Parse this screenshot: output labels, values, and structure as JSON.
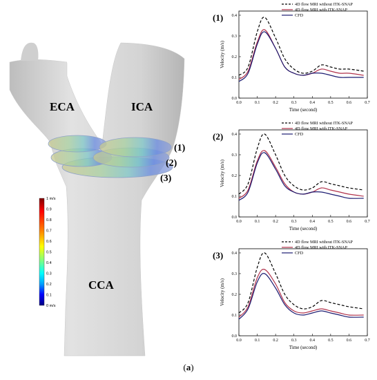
{
  "figure": {
    "caption_open": "(",
    "caption_letter": "a",
    "caption_close": ")"
  },
  "vessel": {
    "labels": {
      "eca": "ECA",
      "ica": "ICA",
      "cca": "CCA"
    },
    "plane_labels": [
      "(1)",
      "(2)",
      "(3)"
    ],
    "colorbar": {
      "ticks": [
        "1 m/s",
        "0.9",
        "0.8",
        "0.7",
        "0.6",
        "0.5",
        "0.4",
        "0.3",
        "0.2",
        "0.1",
        "0 m/s"
      ],
      "colors": [
        "#000080",
        "#0000ff",
        "#00a0ff",
        "#00ffff",
        "#80ff80",
        "#ffff00",
        "#ff8000",
        "#ff0000",
        "#800000"
      ]
    },
    "vessel_color": "#d9d9d9"
  },
  "chart_data": [
    {
      "type": "line",
      "panel_label": "(1)",
      "xlabel": "Time (second)",
      "ylabel": "Velocity (m/s)",
      "xlim": [
        0,
        0.7
      ],
      "ylim": [
        0,
        0.42
      ],
      "xticks": [
        "0.0",
        "0.1",
        "0.2",
        "0.3",
        "0.4",
        "0.5",
        "0.6",
        "0.7"
      ],
      "yticks": [
        "0.0",
        "0.1",
        "0.2",
        "0.3",
        "0.4"
      ],
      "x": [
        0,
        0.05,
        0.1,
        0.14,
        0.2,
        0.25,
        0.3,
        0.35,
        0.4,
        0.45,
        0.5,
        0.55,
        0.6,
        0.68
      ],
      "legend_position": "top-right",
      "series": [
        {
          "name": "4D flow MRI without ITK-SNAP",
          "color": "#000000",
          "dash": "dashed",
          "values": [
            0.11,
            0.15,
            0.32,
            0.39,
            0.29,
            0.19,
            0.14,
            0.12,
            0.13,
            0.16,
            0.15,
            0.14,
            0.14,
            0.13
          ]
        },
        {
          "name": "4D flow MRI with ITK-SNAP",
          "color": "#b0304a",
          "dash": "solid",
          "values": [
            0.09,
            0.13,
            0.27,
            0.33,
            0.24,
            0.15,
            0.12,
            0.11,
            0.12,
            0.14,
            0.13,
            0.12,
            0.12,
            0.11
          ]
        },
        {
          "name": "CFD",
          "color": "#1a1a70",
          "dash": "solid",
          "values": [
            0.08,
            0.12,
            0.26,
            0.32,
            0.24,
            0.15,
            0.12,
            0.11,
            0.12,
            0.12,
            0.11,
            0.1,
            0.1,
            0.1
          ]
        }
      ]
    },
    {
      "type": "line",
      "panel_label": "(2)",
      "xlabel": "Time (second)",
      "ylabel": "Velocity (m/s)",
      "xlim": [
        0,
        0.7
      ],
      "ylim": [
        0,
        0.42
      ],
      "xticks": [
        "0.0",
        "0.1",
        "0.2",
        "0.3",
        "0.4",
        "0.5",
        "0.6",
        "0.7"
      ],
      "yticks": [
        "0.0",
        "0.1",
        "0.2",
        "0.3",
        "0.4"
      ],
      "x": [
        0,
        0.05,
        0.1,
        0.14,
        0.2,
        0.25,
        0.3,
        0.35,
        0.4,
        0.45,
        0.5,
        0.55,
        0.6,
        0.68
      ],
      "legend_position": "top-right",
      "series": [
        {
          "name": "4D flow MRI without ITK-SNAP",
          "color": "#000000",
          "dash": "dashed",
          "values": [
            0.11,
            0.16,
            0.33,
            0.4,
            0.3,
            0.2,
            0.15,
            0.13,
            0.14,
            0.17,
            0.16,
            0.15,
            0.14,
            0.13
          ]
        },
        {
          "name": "4D flow MRI with ITK-SNAP",
          "color": "#b0304a",
          "dash": "solid",
          "values": [
            0.09,
            0.13,
            0.27,
            0.32,
            0.24,
            0.16,
            0.12,
            0.11,
            0.12,
            0.14,
            0.13,
            0.12,
            0.11,
            0.1
          ]
        },
        {
          "name": "CFD",
          "color": "#1a1a70",
          "dash": "solid",
          "values": [
            0.08,
            0.12,
            0.26,
            0.31,
            0.23,
            0.15,
            0.12,
            0.11,
            0.12,
            0.12,
            0.11,
            0.1,
            0.09,
            0.09
          ]
        }
      ]
    },
    {
      "type": "line",
      "panel_label": "(3)",
      "xlabel": "Time (second)",
      "ylabel": "Velocity (m/s)",
      "xlim": [
        0,
        0.7
      ],
      "ylim": [
        0,
        0.42
      ],
      "xticks": [
        "0.0",
        "0.1",
        "0.2",
        "0.3",
        "0.4",
        "0.5",
        "0.6",
        "0.7"
      ],
      "yticks": [
        "0.0",
        "0.1",
        "0.2",
        "0.3",
        "0.4"
      ],
      "x": [
        0,
        0.05,
        0.1,
        0.14,
        0.2,
        0.25,
        0.3,
        0.35,
        0.4,
        0.45,
        0.5,
        0.55,
        0.6,
        0.68
      ],
      "legend_position": "top-right",
      "series": [
        {
          "name": "4D flow MRI without ITK-SNAP",
          "color": "#000000",
          "dash": "dashed",
          "values": [
            0.11,
            0.16,
            0.33,
            0.4,
            0.3,
            0.2,
            0.15,
            0.13,
            0.14,
            0.17,
            0.16,
            0.15,
            0.14,
            0.13
          ]
        },
        {
          "name": "4D flow MRI with ITK-SNAP",
          "color": "#b0304a",
          "dash": "solid",
          "values": [
            0.09,
            0.14,
            0.28,
            0.32,
            0.25,
            0.16,
            0.12,
            0.11,
            0.12,
            0.13,
            0.12,
            0.11,
            0.1,
            0.1
          ]
        },
        {
          "name": "CFD",
          "color": "#1a1a70",
          "dash": "solid",
          "values": [
            0.08,
            0.13,
            0.26,
            0.3,
            0.23,
            0.15,
            0.11,
            0.1,
            0.11,
            0.12,
            0.11,
            0.1,
            0.09,
            0.09
          ]
        }
      ]
    }
  ]
}
